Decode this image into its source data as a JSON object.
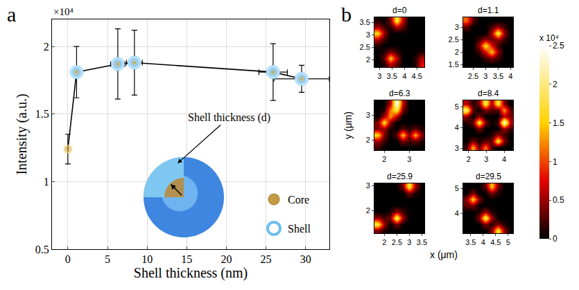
{
  "chart_data": [
    {
      "type": "line",
      "panel": "a",
      "xlabel": "Shell thickness (nm)",
      "ylabel": "Intensity (a.u.)",
      "y_multiplier": "×10⁴",
      "x": [
        0,
        1.1,
        6.3,
        8.4,
        25.9,
        29.5
      ],
      "values": [
        1.24,
        1.81,
        1.87,
        1.88,
        1.81,
        1.76
      ],
      "y_errors": [
        0.11,
        0.19,
        0.26,
        0.24,
        0.21,
        0.1
      ],
      "x_errors": [
        0,
        0.3,
        0.9,
        1.0,
        1.8,
        3.5
      ],
      "color": "#000000",
      "marker": "circle",
      "xlim": [
        -2,
        33
      ],
      "xticks": [
        0,
        5,
        10,
        15,
        20,
        25,
        30
      ],
      "ylim": [
        0.5,
        2.2
      ],
      "yticks": [
        0.5,
        1,
        1.5,
        2
      ],
      "grid": true,
      "annotations": [
        "Shell thickness (d)",
        "Core",
        "Shell"
      ]
    },
    {
      "type": "heatmap",
      "panel": "b",
      "xlabel": "x (μm)",
      "ylabel": "y (μm)",
      "color_range": [
        0,
        2.5
      ],
      "color_ticks": [
        0,
        0.5,
        1,
        1.5,
        2,
        2.5
      ],
      "color_multiplier": "x 10⁴",
      "maps": [
        {
          "title": "d=0",
          "x": [
            2.925,
            3.175,
            3.425,
            3.675,
            3.925,
            4.175,
            4.425,
            4.675
          ],
          "y": [
            1.825,
            2.075,
            2.325,
            2.575,
            2.825,
            3.075,
            3.325,
            3.575
          ],
          "xlim": [
            2.8,
            4.8
          ],
          "xticks": [
            3,
            3.5,
            4,
            4.5
          ],
          "ylim": [
            1.7,
            3.7
          ],
          "yticks": [
            2,
            2.5,
            3,
            3.5
          ],
          "cells": [
            [
              0,
              0.1,
              0.6,
              0.3,
              0,
              0,
              0.1,
              0.8
            ],
            [
              0,
              0.3,
              1.5,
              0.6,
              0,
              0,
              0.1,
              0.6
            ],
            [
              0,
              0.1,
              0.4,
              0.2,
              0,
              0,
              0,
              0.1
            ],
            [
              0.1,
              0,
              0,
              0,
              0,
              0,
              0,
              0
            ],
            [
              0.6,
              0.2,
              0,
              0,
              0,
              0,
              0,
              0
            ],
            [
              1.6,
              0.5,
              0,
              0,
              0,
              0,
              0,
              0
            ],
            [
              0.5,
              0.2,
              0.1,
              0.6,
              0.3,
              0,
              0,
              0
            ],
            [
              0.1,
              0,
              0.4,
              1.8,
              0.6,
              0,
              0,
              0
            ]
          ]
        },
        {
          "title": "d=1.1",
          "x": [
            2.225,
            2.475,
            2.725,
            2.975,
            3.225,
            3.475,
            3.725,
            3.975
          ],
          "y": [
            1.525,
            1.775,
            2.025,
            2.275,
            2.525,
            2.775,
            3.025,
            3.275
          ],
          "xlim": [
            2.1,
            4.1
          ],
          "xticks": [
            2.5,
            3,
            3.5,
            4
          ],
          "ylim": [
            1.4,
            3.4
          ],
          "yticks": [
            1.5,
            2,
            2.5,
            3
          ],
          "cells": [
            [
              0,
              0,
              0,
              0,
              0,
              0,
              0,
              0
            ],
            [
              0,
              0,
              0,
              0.2,
              0.4,
              0.2,
              0,
              0
            ],
            [
              0,
              0,
              0.2,
              0.7,
              1.5,
              0.5,
              0,
              0
            ],
            [
              0,
              0,
              0.5,
              1.7,
              0.8,
              0.2,
              0,
              0
            ],
            [
              0,
              0,
              0.2,
              0.5,
              0.3,
              0.5,
              0.2,
              0
            ],
            [
              0,
              0,
              0,
              0,
              0.5,
              1.9,
              0.5,
              0
            ],
            [
              0.3,
              0,
              0,
              0,
              0.2,
              0.5,
              0.2,
              0
            ],
            [
              1.1,
              0.3,
              0,
              0,
              0,
              0,
              0,
              0
            ]
          ]
        },
        {
          "title": "d=6.3",
          "x": [
            1.725,
            1.975,
            2.225,
            2.475,
            2.725,
            2.975,
            3.225,
            3.475
          ],
          "y": [
            1.725,
            1.975,
            2.225,
            2.475,
            2.725,
            2.975,
            3.225,
            3.475
          ],
          "xlim": [
            1.6,
            3.6
          ],
          "xticks": [
            2,
            3
          ],
          "ylim": [
            1.6,
            3.6
          ],
          "yticks": [
            2,
            3
          ],
          "cells": [
            [
              0.2,
              0,
              0,
              0,
              0,
              0,
              0,
              0
            ],
            [
              0.5,
              0.2,
              0,
              0,
              0.4,
              0.2,
              0.3,
              0.1
            ],
            [
              1.6,
              0.4,
              0,
              0.3,
              1.5,
              0.4,
              1.4,
              0.4
            ],
            [
              0.4,
              0.5,
              0.1,
              0,
              0.3,
              0.1,
              0.3,
              0.1
            ],
            [
              0.4,
              1.7,
              0.4,
              0,
              0,
              0,
              0,
              0
            ],
            [
              0,
              0.5,
              1.3,
              0.6,
              0,
              0,
              0,
              0
            ],
            [
              0,
              0.1,
              1.2,
              1.8,
              0.4,
              0,
              0,
              0
            ],
            [
              0,
              0,
              0.6,
              2.5,
              0.6,
              0,
              0,
              0
            ]
          ]
        },
        {
          "title": "d=8.4",
          "x": [
            1.875,
            2.225,
            2.575,
            2.925,
            3.275,
            3.625,
            3.975,
            4.325
          ],
          "y": [
            3.05,
            3.35,
            3.65,
            3.95,
            4.25,
            4.55,
            4.85,
            5.15
          ],
          "xlim": [
            1.7,
            4.5
          ],
          "xticks": [
            2,
            3,
            4
          ],
          "ylim": [
            2.9,
            5.3
          ],
          "yticks": [
            3,
            4,
            5
          ],
          "cells": [
            [
              0.2,
              1.4,
              0.3,
              1.2,
              0.2,
              0,
              0,
              0
            ],
            [
              0,
              0.4,
              0.1,
              0.3,
              0.3,
              1.8,
              0.4,
              0
            ],
            [
              0,
              0,
              0,
              0,
              0.1,
              0.5,
              0.2,
              0
            ],
            [
              0,
              0,
              0.4,
              0,
              0,
              0,
              0.5,
              0.2
            ],
            [
              0.1,
              0.3,
              1.8,
              0.4,
              0,
              0.2,
              2.5,
              0.6
            ],
            [
              0.5,
              0,
              0.4,
              0,
              0,
              0,
              0.6,
              0.4
            ],
            [
              2.0,
              0.3,
              0,
              0.4,
              0.3,
              0.2,
              1.3,
              0.3
            ],
            [
              0.6,
              0.1,
              0.4,
              1.9,
              0.5,
              1.8,
              0.4,
              0
            ]
          ]
        },
        {
          "title": "d=25.9",
          "x": [
            1.725,
            1.975,
            2.225,
            2.475,
            2.725,
            2.975,
            3.225,
            3.475
          ],
          "y": [
            1.225,
            1.475,
            1.725,
            1.975,
            2.225,
            2.475,
            2.725,
            2.975
          ],
          "xlim": [
            1.6,
            3.6
          ],
          "xticks": [
            2,
            2.5,
            3,
            3.5
          ],
          "ylim": [
            1.1,
            3.1
          ],
          "yticks": [
            2,
            3
          ],
          "cells": [
            [
              0.4,
              0.1,
              0,
              0,
              0,
              0,
              0,
              0
            ],
            [
              1.8,
              0.5,
              0,
              0.4,
              0,
              0,
              0,
              0
            ],
            [
              0.5,
              0.2,
              0.4,
              2.0,
              0.5,
              0,
              0,
              0
            ],
            [
              0,
              0,
              0.1,
              0.5,
              0.2,
              0,
              0,
              0
            ],
            [
              0,
              0,
              0,
              0,
              0,
              0,
              0,
              0
            ],
            [
              0,
              0,
              0,
              0,
              0,
              0,
              0,
              0
            ],
            [
              0,
              0,
              0,
              0,
              0,
              0.4,
              0.1,
              0
            ],
            [
              0,
              0,
              0,
              0,
              0.4,
              1.8,
              0.5,
              0
            ]
          ]
        },
        {
          "title": "d=29.5",
          "x": [
            3.325,
            3.575,
            3.825,
            4.075,
            4.325,
            4.575,
            4.825,
            5.075
          ],
          "y": [
            3.325,
            3.575,
            3.825,
            4.075,
            4.325,
            4.575,
            4.825,
            5.075
          ],
          "xlim": [
            3.2,
            5.2
          ],
          "xticks": [
            3.5,
            4,
            4.5,
            5
          ],
          "ylim": [
            3.2,
            5.2
          ],
          "yticks": [
            4,
            5
          ],
          "cells": [
            [
              0,
              0,
              0,
              0,
              0.4,
              1.8,
              0.5,
              0
            ],
            [
              0,
              0,
              0,
              0.4,
              0.1,
              0.4,
              0.1,
              0
            ],
            [
              0,
              0,
              0.4,
              2.0,
              0.5,
              0,
              0,
              0
            ],
            [
              0,
              0,
              0.1,
              0.5,
              0.1,
              0,
              0,
              0
            ],
            [
              0.3,
              0.4,
              0,
              0,
              0,
              0,
              0,
              0
            ],
            [
              0.4,
              1.6,
              0.4,
              0,
              0,
              0,
              0,
              0
            ],
            [
              0,
              0.4,
              0,
              0,
              0.4,
              0.1,
              0,
              0
            ],
            [
              0,
              0,
              0,
              0.3,
              1.5,
              0.4,
              0,
              0
            ]
          ]
        }
      ]
    }
  ]
}
